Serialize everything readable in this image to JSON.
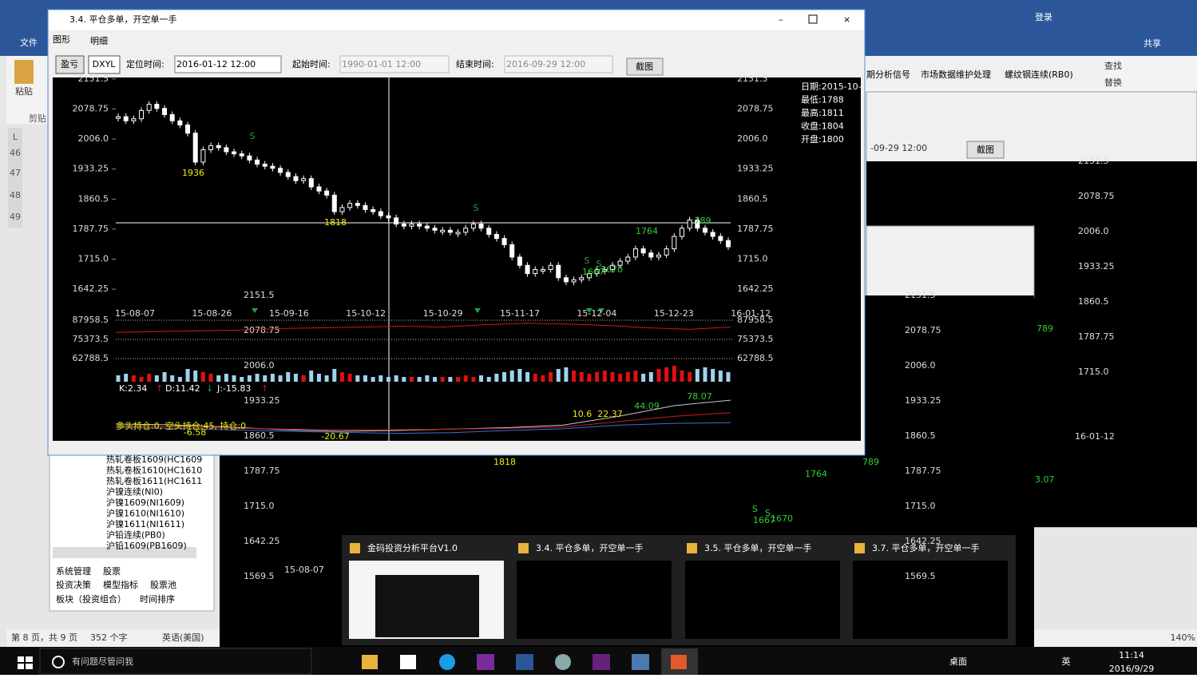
{
  "word": {
    "tab": "文件",
    "account": [
      "登录",
      "共享"
    ],
    "ribbon": [
      "粘贴",
      "剪贴",
      "查找",
      "替换"
    ],
    "ruler": [
      "L",
      "46",
      "47",
      "48",
      "49"
    ],
    "status": [
      "第 8 页，共 9 页",
      "352 个字",
      "英语(美国)",
      "140%"
    ]
  },
  "navigator": {
    "tree": [
      "热轧卷板1609(HC1609",
      "热轧卷板1610(HC1610",
      "热轧卷板1611(HC1611",
      "沪镍连续(NI0)",
      "沪镍1609(NI1609)",
      "沪镍1610(NI1610)",
      "沪镍1611(NI1611)",
      "沪铅连续(PB0)",
      "沪铅1609(PB1609)"
    ],
    "tabs": [
      "系统管理",
      "股票",
      "投资决策",
      "模型指标",
      "股票池",
      "板块（投资组合）",
      "时间排序"
    ]
  },
  "back_window": {
    "tabs": [
      "期分析信号",
      "市场数据维护处理",
      "螺纹钢连续(RB0)"
    ],
    "end_time": "-09-29 12:00",
    "button": "截图",
    "yticks": [
      "2151.5",
      "2078.75",
      "2006.0",
      "1933.25",
      "1860.5",
      "1787.75",
      "1715.0"
    ],
    "date": "16-01-12",
    "annotations": [
      "789",
      "3.07"
    ]
  },
  "middle_window": {
    "yticks": [
      "2151.5",
      "2078.75",
      "2006.0",
      "1933.25",
      "1860.5",
      "1787.75",
      "1715.0",
      "1642.25",
      "1569.5"
    ],
    "date": "15-08-07",
    "annotations": [
      "1818",
      "1764",
      "789",
      "S",
      "S",
      "1667",
      "1670"
    ]
  },
  "main_window": {
    "title": "3.4. 平仓多单，开空单一手",
    "tabs": [
      "图形",
      "明细"
    ],
    "toolbar": {
      "buttons": [
        "盈亏",
        "DXYL"
      ],
      "locate_label": "定位时间:",
      "locate_time": "2016-01-12 12:00",
      "start_label": "起始时间:",
      "start_time": "1990-01-01 12:00",
      "end_label": "结束时间:",
      "end_time": "2016-09-29 12:00",
      "snapshot": "截图"
    },
    "chart_data": {
      "type": "candlestick",
      "dates": [
        "15-08-07",
        "15-08-26",
        "15-09-16",
        "15-10-12",
        "15-10-29",
        "15-11-17",
        "15-12-04",
        "15-12-23",
        "16-01-12"
      ],
      "ylim": [
        1598,
        2155
      ],
      "yticks": [
        {
          "value": 2151.5,
          "label": "2151.5"
        },
        2078.75,
        {
          "value": 2006,
          "label": "2006.0"
        },
        1933.25,
        1860.5,
        1787.75,
        {
          "value": 1715,
          "label": "1715.0"
        },
        1642.25
      ],
      "close": [
        2060,
        2050,
        2055,
        2075,
        2090,
        2080,
        2065,
        2050,
        2040,
        2020,
        1950,
        1980,
        1990,
        1985,
        1975,
        1970,
        1965,
        1955,
        1945,
        1940,
        1935,
        1925,
        1915,
        1905,
        1910,
        1890,
        1880,
        1870,
        1830,
        1840,
        1850,
        1845,
        1835,
        1830,
        1820,
        1815,
        1800,
        1795,
        1800,
        1795,
        1790,
        1785,
        1785,
        1780,
        1780,
        1790,
        1800,
        1790,
        1775,
        1765,
        1750,
        1720,
        1700,
        1680,
        1690,
        1690,
        1700,
        1670,
        1660,
        1665,
        1670,
        1680,
        1690,
        1690,
        1700,
        1710,
        1720,
        1740,
        1730,
        1720,
        1725,
        1740,
        1770,
        1790,
        1810,
        1790,
        1780,
        1770,
        1760,
        1745
      ],
      "volume": [
        4,
        5,
        4,
        3,
        5,
        4,
        6,
        4,
        3,
        8,
        7,
        6,
        5,
        4,
        5,
        4,
        3,
        4,
        5,
        4,
        5,
        4,
        6,
        5,
        4,
        7,
        5,
        4,
        8,
        6,
        5,
        4,
        4,
        3,
        4,
        3,
        4,
        3,
        3,
        3,
        4,
        3,
        3,
        3,
        3,
        4,
        3,
        4,
        3,
        5,
        6,
        7,
        8,
        6,
        5,
        4,
        6,
        8,
        9,
        7,
        6,
        5,
        6,
        7,
        6,
        5,
        6,
        7,
        5,
        6,
        8,
        9,
        10,
        7,
        6,
        8,
        9,
        8,
        7,
        6
      ],
      "open_interest": {
        "color": "#d0191b",
        "values": [
          80000,
          80500,
          81000,
          81500,
          82500,
          83000,
          83500,
          84000,
          83500,
          85000,
          86000,
          85500,
          84500,
          83000,
          82000,
          83500
        ],
        "y2lim": [
          62788.5,
          87958.5
        ],
        "y2ticks": [
          87958.5,
          75373.5,
          62788.5
        ]
      },
      "info": [
        "日期:2015-10-",
        "最低:1788",
        "最高:1811",
        "收盘:1804",
        "开盘:1800"
      ],
      "annotations": [
        "S",
        "1936",
        "1818",
        "S",
        "1764",
        "789",
        "S",
        "S",
        "1667",
        "1670"
      ],
      "kdj": [
        "K:2.34",
        "↑",
        "D:11.42",
        "↓",
        "J:-15.83",
        "↑"
      ],
      "indicator": {
        "ylim": [
          -30,
          100
        ],
        "series": [
          {
            "color": "#c8c8c8",
            "values": [
              8,
              6,
              0,
              -8,
              -12,
              -10,
              -6,
              -2,
              5,
              30,
              60,
              75
            ]
          },
          {
            "color": "#d0191b",
            "values": [
              2,
              0,
              -3,
              -6,
              -8,
              -8,
              -6,
              -4,
              0,
              15,
              30,
              40
            ]
          },
          {
            "color": "#3b6fd6",
            "values": [
              -2,
              -4,
              -8,
              -12,
              -15,
              -18,
              -16,
              -10,
              -5,
              5,
              10,
              12
            ]
          }
        ],
        "labels": [
          "78.07",
          "44.09",
          "10.6",
          "22.37",
          "-6.58",
          "-20.67"
        ],
        "positions": "多头持仓:0, 空头持仓:45, 持仓:0"
      }
    }
  },
  "thumbnails": [
    "金码投资分析平台V1.0",
    "3.4. 平仓多单，开空单一手",
    "3.5. 平仓多单，开空单一手",
    "3.7. 平仓多单，开空单一手"
  ],
  "taskbar": {
    "search": "有问题尽管问我",
    "desktop": "桌面",
    "ime": "英",
    "time": "11:14",
    "date": "2016/9/29"
  }
}
